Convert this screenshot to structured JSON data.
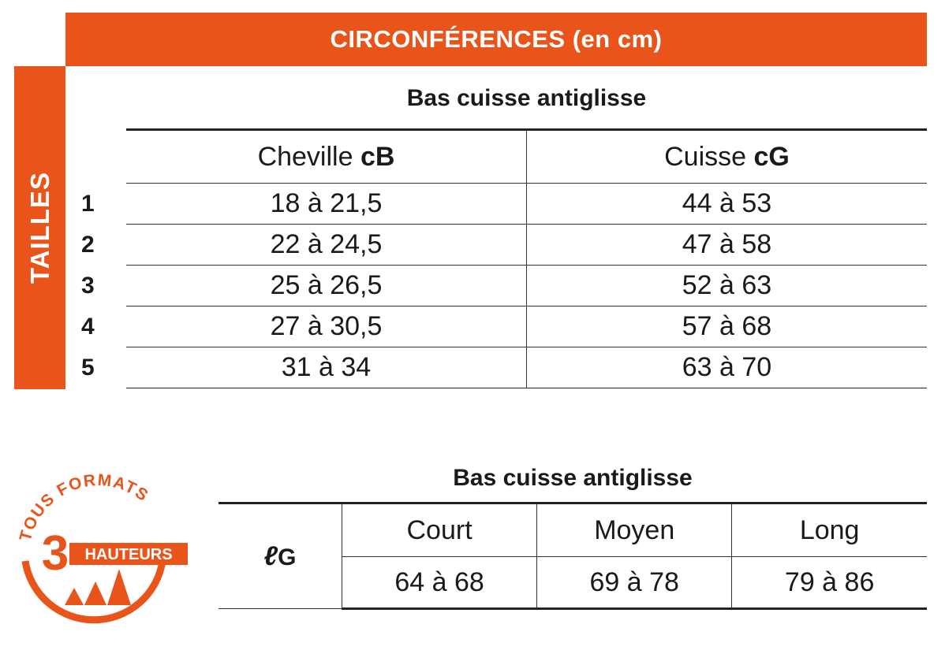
{
  "header": {
    "title": "CIRCONFÉRENCES (en cm)"
  },
  "side": {
    "label": "TAILLES"
  },
  "table1": {
    "title": "Bas cuisse antiglisse",
    "columns": [
      {
        "label": "Cheville",
        "code": "cB"
      },
      {
        "label": "Cuisse",
        "code": "cG"
      }
    ],
    "rows": [
      {
        "size": "1",
        "cheville": "18 à 21,5",
        "cuisse": "44 à 53"
      },
      {
        "size": "2",
        "cheville": "22 à 24,5",
        "cuisse": "47 à 58"
      },
      {
        "size": "3",
        "cheville": "25 à 26,5",
        "cuisse": "52 à 63"
      },
      {
        "size": "4",
        "cheville": "27 à 30,5",
        "cuisse": "57 à 68"
      },
      {
        "size": "5",
        "cheville": "31 à 34",
        "cuisse": "63 à 70"
      }
    ]
  },
  "table2": {
    "title": "Bas cuisse antiglisse",
    "row_label": {
      "script": "ℓ",
      "letter": "G"
    },
    "columns": [
      "Court",
      "Moyen",
      "Long"
    ],
    "values": [
      "64 à 68",
      "69 à 78",
      "79 à 86"
    ]
  },
  "badge": {
    "arc_text": "TOUS FORMATS",
    "number": "3",
    "label": "HAUTEURS"
  },
  "colors": {
    "accent": "#e9541b",
    "text": "#1a1a1a",
    "rule": "#222222"
  }
}
